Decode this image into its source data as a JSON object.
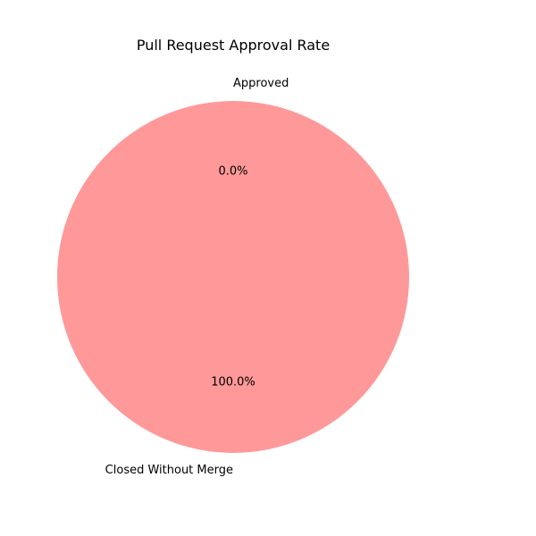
{
  "chart_data": {
    "type": "pie",
    "title": "Pull Request Approval Rate",
    "start_angle_deg": 90,
    "direction": "counterclockwise",
    "slices": [
      {
        "label": "Approved",
        "value": 0,
        "pct_label": "0.0%",
        "color": "#66b3ff"
      },
      {
        "label": "Closed Without Merge",
        "value": 100,
        "pct_label": "100.0%",
        "color": "#ff9999"
      }
    ]
  }
}
